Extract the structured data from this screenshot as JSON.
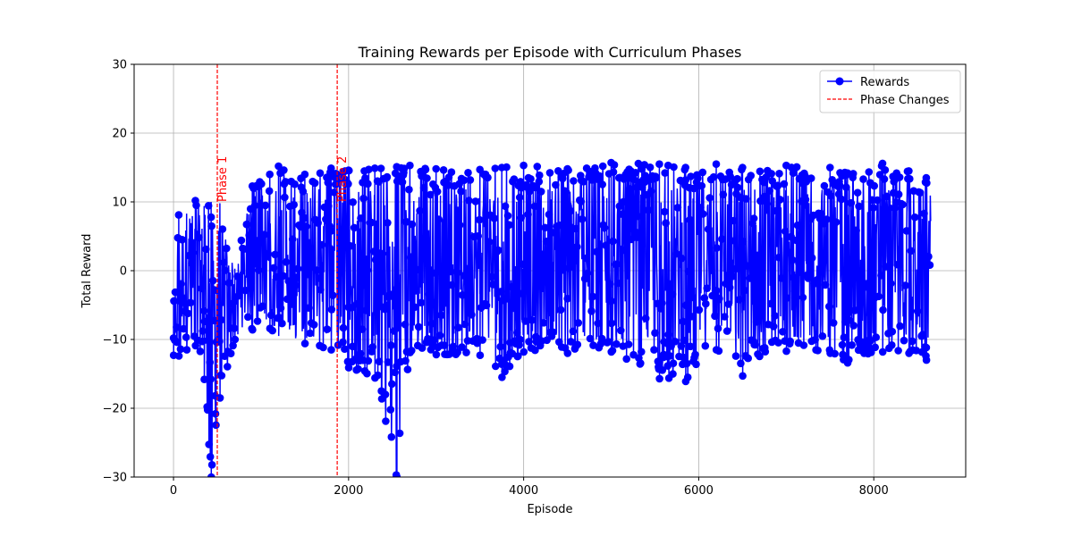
{
  "chart_data": {
    "type": "line",
    "title": "Training Rewards per Episode with Curriculum Phases",
    "xlabel": "Episode",
    "ylabel": "Total Reward",
    "xlim": [
      -450,
      9050
    ],
    "ylim": [
      -30,
      30
    ],
    "xticks": [
      0,
      2000,
      4000,
      6000,
      8000
    ],
    "yticks": [
      -30,
      -20,
      -10,
      0,
      10,
      20,
      30
    ],
    "grid": true,
    "legend_position": "top-right",
    "colors": {
      "series": "#0000ff",
      "phase": "#ff0000"
    },
    "series": [
      {
        "name": "Rewards",
        "style": "line-with-circle-markers",
        "episodes": [
          0,
          8650
        ],
        "envelope": [
          {
            "x": 0,
            "min": -12.3,
            "max": -4.8
          },
          {
            "x": 60,
            "min": -12.4,
            "max": 8.1
          },
          {
            "x": 150,
            "min": -11.5,
            "max": 8.3
          },
          {
            "x": 250,
            "min": -10.9,
            "max": 10.2
          },
          {
            "x": 350,
            "min": -15.8,
            "max": 9.4
          },
          {
            "x": 430,
            "min": -30,
            "max": 10.0
          },
          {
            "x": 530,
            "min": -18.5,
            "max": 9.8
          },
          {
            "x": 700,
            "min": -10.0,
            "max": 0.3
          },
          {
            "x": 900,
            "min": -8.6,
            "max": 12.3
          },
          {
            "x": 1100,
            "min": -8.4,
            "max": 14.0
          },
          {
            "x": 1200,
            "min": -9.5,
            "max": 15.2
          },
          {
            "x": 1500,
            "min": -10.6,
            "max": 14.0
          },
          {
            "x": 1800,
            "min": -11.5,
            "max": 14.9
          },
          {
            "x": 2000,
            "min": -14.1,
            "max": 14.6
          },
          {
            "x": 2300,
            "min": -15.6,
            "max": 14.9
          },
          {
            "x": 2550,
            "min": -30,
            "max": 15.1
          },
          {
            "x": 2700,
            "min": -11.9,
            "max": 15.3
          },
          {
            "x": 3000,
            "min": -12.2,
            "max": 14.8
          },
          {
            "x": 3500,
            "min": -12.3,
            "max": 14.7
          },
          {
            "x": 3750,
            "min": -15.5,
            "max": 15.0
          },
          {
            "x": 4000,
            "min": -11.8,
            "max": 15.3
          },
          {
            "x": 4500,
            "min": -12.0,
            "max": 14.8
          },
          {
            "x": 5000,
            "min": -11.8,
            "max": 15.7
          },
          {
            "x": 5550,
            "min": -15.7,
            "max": 15.5
          },
          {
            "x": 5850,
            "min": -16.1,
            "max": 15.0
          },
          {
            "x": 6200,
            "min": -11.5,
            "max": 15.5
          },
          {
            "x": 6500,
            "min": -15.3,
            "max": 15.0
          },
          {
            "x": 7000,
            "min": -11.7,
            "max": 15.3
          },
          {
            "x": 7500,
            "min": -12.0,
            "max": 15.0
          },
          {
            "x": 7700,
            "min": -13.4,
            "max": 14.2
          },
          {
            "x": 8100,
            "min": -11.8,
            "max": 15.6
          },
          {
            "x": 8400,
            "min": -12.0,
            "max": 14.5
          },
          {
            "x": 8600,
            "min": -13.0,
            "max": 13.5
          }
        ]
      }
    ],
    "phase_lines": [
      {
        "x": 500,
        "label": "Phase 1"
      },
      {
        "x": 1870,
        "label": "Phase 2"
      }
    ],
    "legend": [
      {
        "label": "Rewards",
        "kind": "line-marker"
      },
      {
        "label": "Phase Changes",
        "kind": "dashed"
      }
    ]
  }
}
